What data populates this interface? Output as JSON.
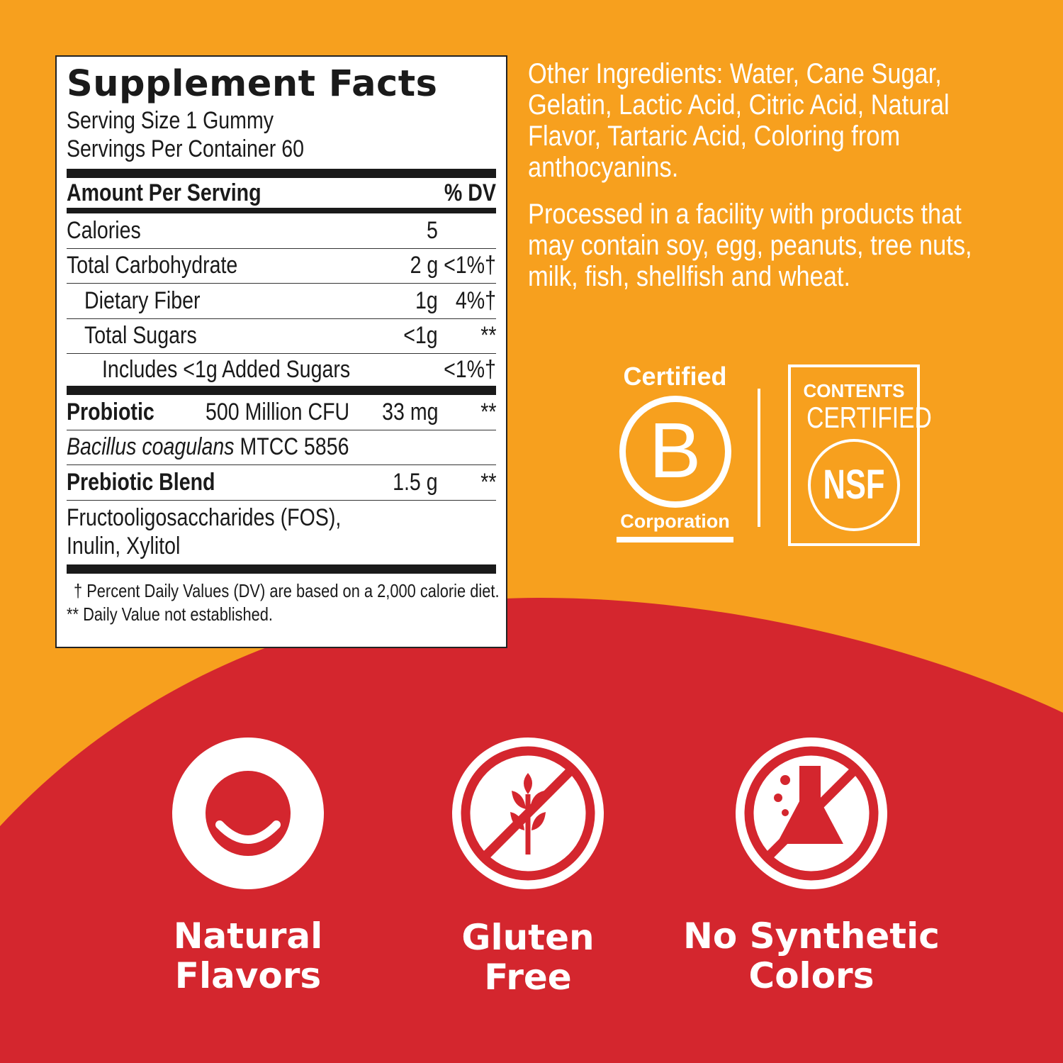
{
  "facts": {
    "title": "Supplement Facts",
    "serving_size": "Serving Size 1 Gummy",
    "servings_per_container": "Servings Per Container 60",
    "amount_header": "Amount Per Serving",
    "dv_header": "% DV",
    "rows": [
      {
        "name": "Calories",
        "amount": "5",
        "dv": ""
      },
      {
        "name": "Total Carbohydrate",
        "amount": "2 g",
        "dv": "<1%†"
      },
      {
        "name": "Dietary Fiber",
        "amount": "1g",
        "dv": "4%†"
      },
      {
        "name": "Total Sugars",
        "amount": "<1g",
        "dv": "**"
      },
      {
        "name": "Includes <1g Added Sugars",
        "amount": "",
        "dv": "<1%†"
      }
    ],
    "probiotic": {
      "name": "Probiotic",
      "count": "500 Million CFU",
      "amount": "33 mg",
      "dv": "**",
      "strain_italic": "Bacillus coagulans",
      "strain_rest": " MTCC 5856"
    },
    "prebiotic": {
      "name": "Prebiotic Blend",
      "amount": "1.5 g",
      "dv": "**",
      "line1": "Fructooligosaccharides (FOS),",
      "line2": "Inulin, Xylitol"
    },
    "footnote1": "† Percent Daily Values (DV) are based on a 2,000 calorie diet.",
    "footnote2": "** Daily Value not established."
  },
  "other_ingredients": "Other Ingredients:  Water, Cane Sugar, Gelatin, Lactic Acid, Citric Acid, Natural Flavor, Tartaric Acid, Coloring from anthocyanins.",
  "allergen": "Processed in a facility with products that may contain soy, egg, peanuts, tree nuts, milk, fish, shellfish and wheat.",
  "bcorp": {
    "top": "Certified",
    "letter": "B",
    "bottom": "Corporation"
  },
  "nsf": {
    "line1": "CONTENTS",
    "line2": "CERTIFIED",
    "mark": "NSF"
  },
  "features": [
    {
      "line1": "Natural",
      "line2": "Flavors",
      "icon": "smile-icon"
    },
    {
      "line1": "Gluten",
      "line2": "Free",
      "icon": "no-wheat-icon"
    },
    {
      "line1": "No Synthetic",
      "line2": "Colors",
      "icon": "no-flask-icon"
    }
  ],
  "colors": {
    "orange": "#F7A01E",
    "red": "#D4262E"
  }
}
